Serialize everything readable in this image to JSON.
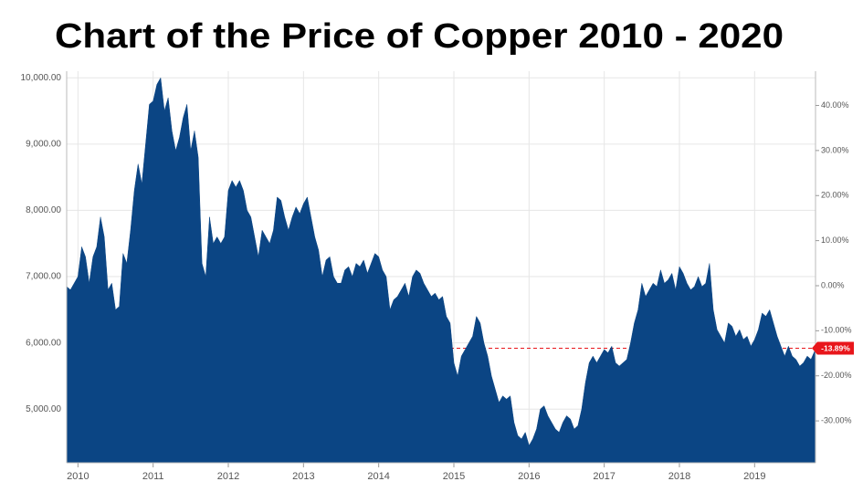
{
  "chart_data": {
    "type": "area",
    "title": "Chart of the Price of Copper 2010 - 2020",
    "x": [
      2009.85,
      2009.9,
      2009.95,
      2010.0,
      2010.05,
      2010.1,
      2010.15,
      2010.2,
      2010.25,
      2010.3,
      2010.35,
      2010.4,
      2010.45,
      2010.5,
      2010.55,
      2010.6,
      2010.65,
      2010.7,
      2010.75,
      2010.8,
      2010.85,
      2010.9,
      2010.95,
      2011.0,
      2011.05,
      2011.1,
      2011.15,
      2011.2,
      2011.25,
      2011.3,
      2011.35,
      2011.4,
      2011.45,
      2011.5,
      2011.55,
      2011.6,
      2011.65,
      2011.7,
      2011.75,
      2011.8,
      2011.85,
      2011.9,
      2011.95,
      2012.0,
      2012.05,
      2012.1,
      2012.15,
      2012.2,
      2012.25,
      2012.3,
      2012.35,
      2012.4,
      2012.45,
      2012.5,
      2012.55,
      2012.6,
      2012.65,
      2012.7,
      2012.75,
      2012.8,
      2012.85,
      2012.9,
      2012.95,
      2013.0,
      2013.05,
      2013.1,
      2013.15,
      2013.2,
      2013.25,
      2013.3,
      2013.35,
      2013.4,
      2013.45,
      2013.5,
      2013.55,
      2013.6,
      2013.65,
      2013.7,
      2013.75,
      2013.8,
      2013.85,
      2013.9,
      2013.95,
      2014.0,
      2014.05,
      2014.1,
      2014.15,
      2014.2,
      2014.25,
      2014.3,
      2014.35,
      2014.4,
      2014.45,
      2014.5,
      2014.55,
      2014.6,
      2014.65,
      2014.7,
      2014.75,
      2014.8,
      2014.85,
      2014.9,
      2014.95,
      2015.0,
      2015.05,
      2015.1,
      2015.15,
      2015.2,
      2015.25,
      2015.3,
      2015.35,
      2015.4,
      2015.45,
      2015.5,
      2015.55,
      2015.6,
      2015.65,
      2015.7,
      2015.75,
      2015.8,
      2015.85,
      2015.9,
      2015.95,
      2016.0,
      2016.05,
      2016.1,
      2016.15,
      2016.2,
      2016.25,
      2016.3,
      2016.35,
      2016.4,
      2016.45,
      2016.5,
      2016.55,
      2016.6,
      2016.65,
      2016.7,
      2016.75,
      2016.8,
      2016.85,
      2016.9,
      2016.95,
      2017.0,
      2017.05,
      2017.1,
      2017.15,
      2017.2,
      2017.25,
      2017.3,
      2017.35,
      2017.4,
      2017.45,
      2017.5,
      2017.55,
      2017.6,
      2017.65,
      2017.7,
      2017.75,
      2017.8,
      2017.85,
      2017.9,
      2017.95,
      2018.0,
      2018.05,
      2018.1,
      2018.15,
      2018.2,
      2018.25,
      2018.3,
      2018.35,
      2018.4,
      2018.45,
      2018.5,
      2018.55,
      2018.6,
      2018.65,
      2018.7,
      2018.75,
      2018.8,
      2018.85,
      2018.9,
      2018.95,
      2019.0,
      2019.05,
      2019.1,
      2019.15,
      2019.2,
      2019.25,
      2019.3,
      2019.35,
      2019.4,
      2019.45,
      2019.5,
      2019.55,
      2019.6,
      2019.65,
      2019.7,
      2019.75,
      2019.8
    ],
    "series": [
      {
        "color": "#0b4584",
        "values": [
          6850,
          6800,
          6900,
          7000,
          7450,
          7300,
          6900,
          7300,
          7450,
          7900,
          7600,
          6800,
          6900,
          6500,
          6550,
          7350,
          7200,
          7700,
          8300,
          8700,
          8400,
          9000,
          9600,
          9650,
          9900,
          10000,
          9500,
          9700,
          9200,
          8900,
          9100,
          9400,
          9600,
          8900,
          9200,
          8800,
          7200,
          7000,
          7900,
          7500,
          7600,
          7500,
          7600,
          8300,
          8450,
          8350,
          8450,
          8300,
          8000,
          7900,
          7600,
          7300,
          7700,
          7600,
          7500,
          7700,
          8200,
          8150,
          7900,
          7700,
          7900,
          8050,
          7950,
          8100,
          8200,
          7900,
          7600,
          7400,
          7000,
          7250,
          7300,
          7000,
          6900,
          6900,
          7100,
          7150,
          7000,
          7200,
          7150,
          7250,
          7050,
          7200,
          7350,
          7300,
          7100,
          7000,
          6500,
          6650,
          6700,
          6800,
          6900,
          6700,
          7000,
          7100,
          7050,
          6900,
          6800,
          6700,
          6750,
          6650,
          6700,
          6400,
          6300,
          5700,
          5500,
          5800,
          5900,
          6000,
          6100,
          6400,
          6300,
          6000,
          5800,
          5500,
          5300,
          5100,
          5200,
          5150,
          5200,
          4800,
          4600,
          4550,
          4650,
          4450,
          4550,
          4700,
          5000,
          5050,
          4900,
          4800,
          4700,
          4650,
          4800,
          4900,
          4850,
          4700,
          4750,
          5000,
          5400,
          5700,
          5800,
          5700,
          5800,
          5900,
          5850,
          5950,
          5700,
          5650,
          5700,
          5750,
          6000,
          6300,
          6500,
          6900,
          6700,
          6800,
          6900,
          6850,
          7100,
          6900,
          6950,
          7050,
          6800,
          7150,
          7050,
          6900,
          6800,
          6850,
          7000,
          6850,
          6900,
          7200,
          6500,
          6200,
          6100,
          6000,
          6300,
          6250,
          6100,
          6200,
          6050,
          6100,
          5950,
          6050,
          6200,
          6450,
          6400,
          6500,
          6300,
          6100,
          5950,
          5800,
          5950,
          5800,
          5750,
          5650,
          5700,
          5800,
          5750,
          5880
        ]
      }
    ],
    "xlim": [
      2009.85,
      2019.81
    ],
    "xticks": [
      2010,
      2011,
      2012,
      2013,
      2014,
      2015,
      2016,
      2017,
      2018,
      2019
    ],
    "ylim": [
      4190,
      10100
    ],
    "yticks": [
      {
        "value": 5000,
        "label": "5,000.00"
      },
      {
        "value": 6000,
        "label": "6,000.00"
      },
      {
        "value": 7000,
        "label": "7,000.00"
      },
      {
        "value": 8000,
        "label": "8,000.00"
      },
      {
        "value": 9000,
        "label": "9,000.00"
      },
      {
        "value": 10000,
        "label": "10,000.00"
      }
    ],
    "y2lim": [
      -39.3,
      47.6
    ],
    "y2ticks": [
      {
        "value": -30,
        "label": "-30.00%"
      },
      {
        "value": -20,
        "label": "-20.00%"
      },
      {
        "value": -10,
        "label": "-10.00%"
      },
      {
        "value": 0,
        "label": "0.00%"
      },
      {
        "value": 10,
        "label": "10.00%"
      },
      {
        "value": 20,
        "label": "20.00%"
      },
      {
        "value": 30,
        "label": "30.00%"
      },
      {
        "value": 40,
        "label": "40.00%"
      }
    ],
    "annotation": {
      "value": -13.89,
      "label": "-13.89%",
      "axis": "y2",
      "color": "#e8161b"
    },
    "grid": true
  }
}
